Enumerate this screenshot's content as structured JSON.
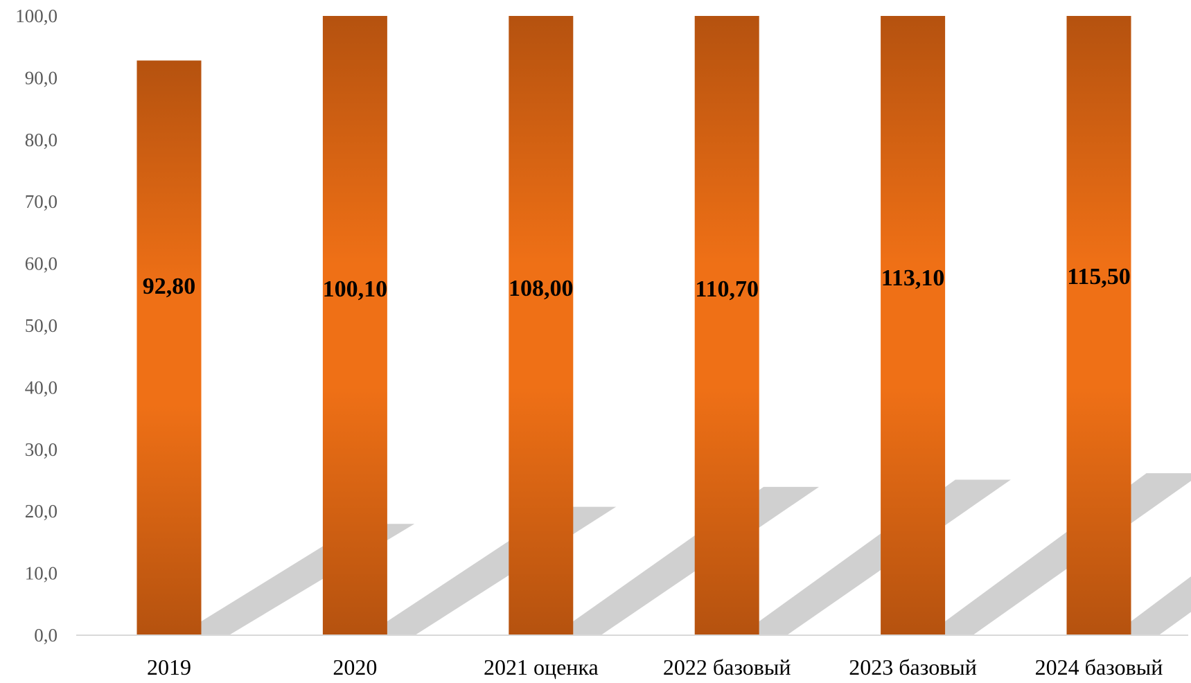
{
  "chart_data": {
    "type": "bar",
    "title": "",
    "xlabel": "",
    "ylabel": "",
    "categories": [
      "2019",
      "2020",
      "2021 оценка",
      "2022 базовый",
      "2023 базовый",
      "2024 базовый"
    ],
    "values": [
      92.8,
      100.1,
      108.0,
      110.7,
      113.1,
      115.5
    ],
    "value_labels": [
      "92,80",
      "100,10",
      "108,00",
      "110,70",
      "113,10",
      "115,50"
    ],
    "ylim": [
      0,
      100
    ],
    "y_ticks": [
      "0,0",
      "10,0",
      "20,0",
      "30,0",
      "40,0",
      "50,0",
      "60,0",
      "70,0",
      "80,0",
      "90,0",
      "100,0"
    ],
    "grid": false,
    "legend": "none",
    "bar_color_edge": "#b5520f",
    "bar_color_center": "#ef7016",
    "shadow_color": "#c8c8c8",
    "axis_color": "#d9d9d9"
  }
}
